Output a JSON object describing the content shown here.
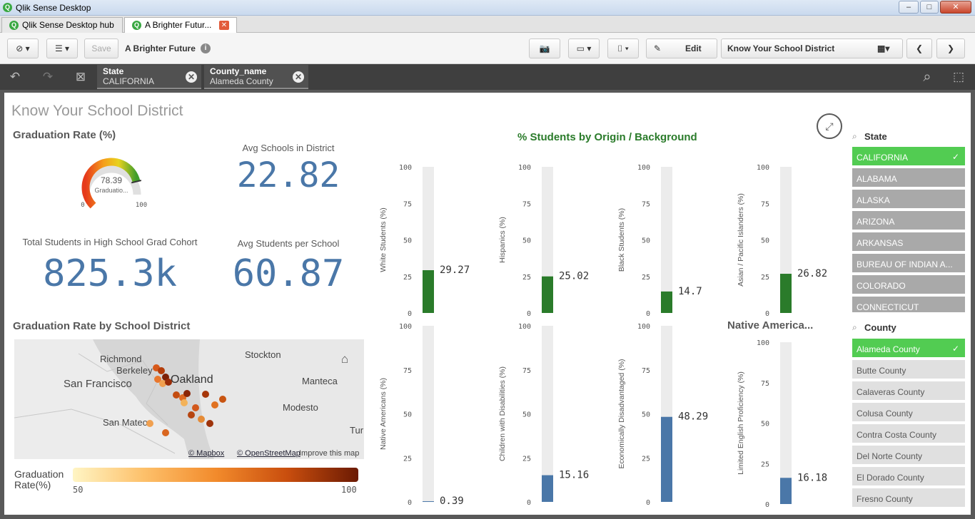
{
  "window": {
    "title": "Qlik Sense Desktop",
    "min": "–",
    "max": "□",
    "close": "✕"
  },
  "tabs": [
    {
      "label": "Qlik Sense Desktop hub"
    },
    {
      "label": "A Brighter Futur..."
    }
  ],
  "toolbar": {
    "save_label": "Save",
    "app_title": "A Brighter Future",
    "edit_label": "Edit",
    "sheet_name": "Know Your School District"
  },
  "selections": [
    {
      "field": "State",
      "value": "CALIFORNIA"
    },
    {
      "field": "County_name",
      "value": "Alameda County"
    }
  ],
  "sheet": {
    "title": "Know Your School District",
    "grad_title": "Graduation Rate (%)",
    "gauge": {
      "value": "78.39",
      "label": "Graduatio...",
      "min": "0",
      "max": "100",
      "fraction": 0.7839
    },
    "kpis": [
      {
        "label": "Avg Schools in District",
        "value": "22.82"
      },
      {
        "label": "Total Students in High School Grad Cohort",
        "value": "825.3k"
      },
      {
        "label": "Avg Students per School",
        "value": "60.87"
      }
    ],
    "map": {
      "title": "Graduation Rate by School District",
      "credit_mapbox": "© Mapbox",
      "credit_osm": "© OpenStreetMap",
      "credit_improve": "Improve this map",
      "places": [
        "Richmond",
        "Berkeley",
        "Oakland",
        "San Francisco",
        "Stockton",
        "Manteca",
        "Modesto",
        "San Mateo",
        "Tur"
      ],
      "legend": {
        "title_1": "Graduation",
        "title_2": "Rate(%)",
        "min": "50",
        "max": "100"
      }
    },
    "origin_title": "% Students by Origin / Background",
    "native_title": "Native America...",
    "ticks": [
      "100",
      "75",
      "50",
      "25",
      "0"
    ],
    "colors": {
      "green": "#2a7b2a",
      "blue": "#4a77a8",
      "select": "#52cc52"
    }
  },
  "chart_data": {
    "type": "bar",
    "title": "% Students by Origin / Background",
    "ylim": [
      0,
      100
    ],
    "series": [
      {
        "name": "White Students (%)",
        "value": 29.27,
        "label": "29.27"
      },
      {
        "name": "Hispanics (%)",
        "value": 25.02,
        "label": "25.02"
      },
      {
        "name": "Black Students (%)",
        "value": 14.7,
        "label": "14.7"
      },
      {
        "name": "Asian / Pacific Islanders (%)",
        "value": 26.82,
        "label": "26.82"
      },
      {
        "name": "Native Americans (%)",
        "value": 0.39,
        "label": "0.39"
      },
      {
        "name": "Children with Disabilities (%)",
        "value": 15.16,
        "label": "15.16"
      },
      {
        "name": "Economically Disadvantaged (%)",
        "value": 48.29,
        "label": "48.29"
      },
      {
        "name": "Limited English Proficiency (%)",
        "value": 16.18,
        "label": "16.18"
      }
    ]
  },
  "state_list": {
    "header": "State",
    "items": [
      "CALIFORNIA",
      "ALABAMA",
      "ALASKA",
      "ARIZONA",
      "ARKANSAS",
      "BUREAU OF INDIAN A...",
      "COLORADO",
      "CONNECTICUT"
    ]
  },
  "county_list": {
    "header": "County",
    "items": [
      "Alameda County",
      "Butte County",
      "Calaveras County",
      "Colusa County",
      "Contra Costa County",
      "Del Norte County",
      "El Dorado County",
      "Fresno County"
    ]
  }
}
